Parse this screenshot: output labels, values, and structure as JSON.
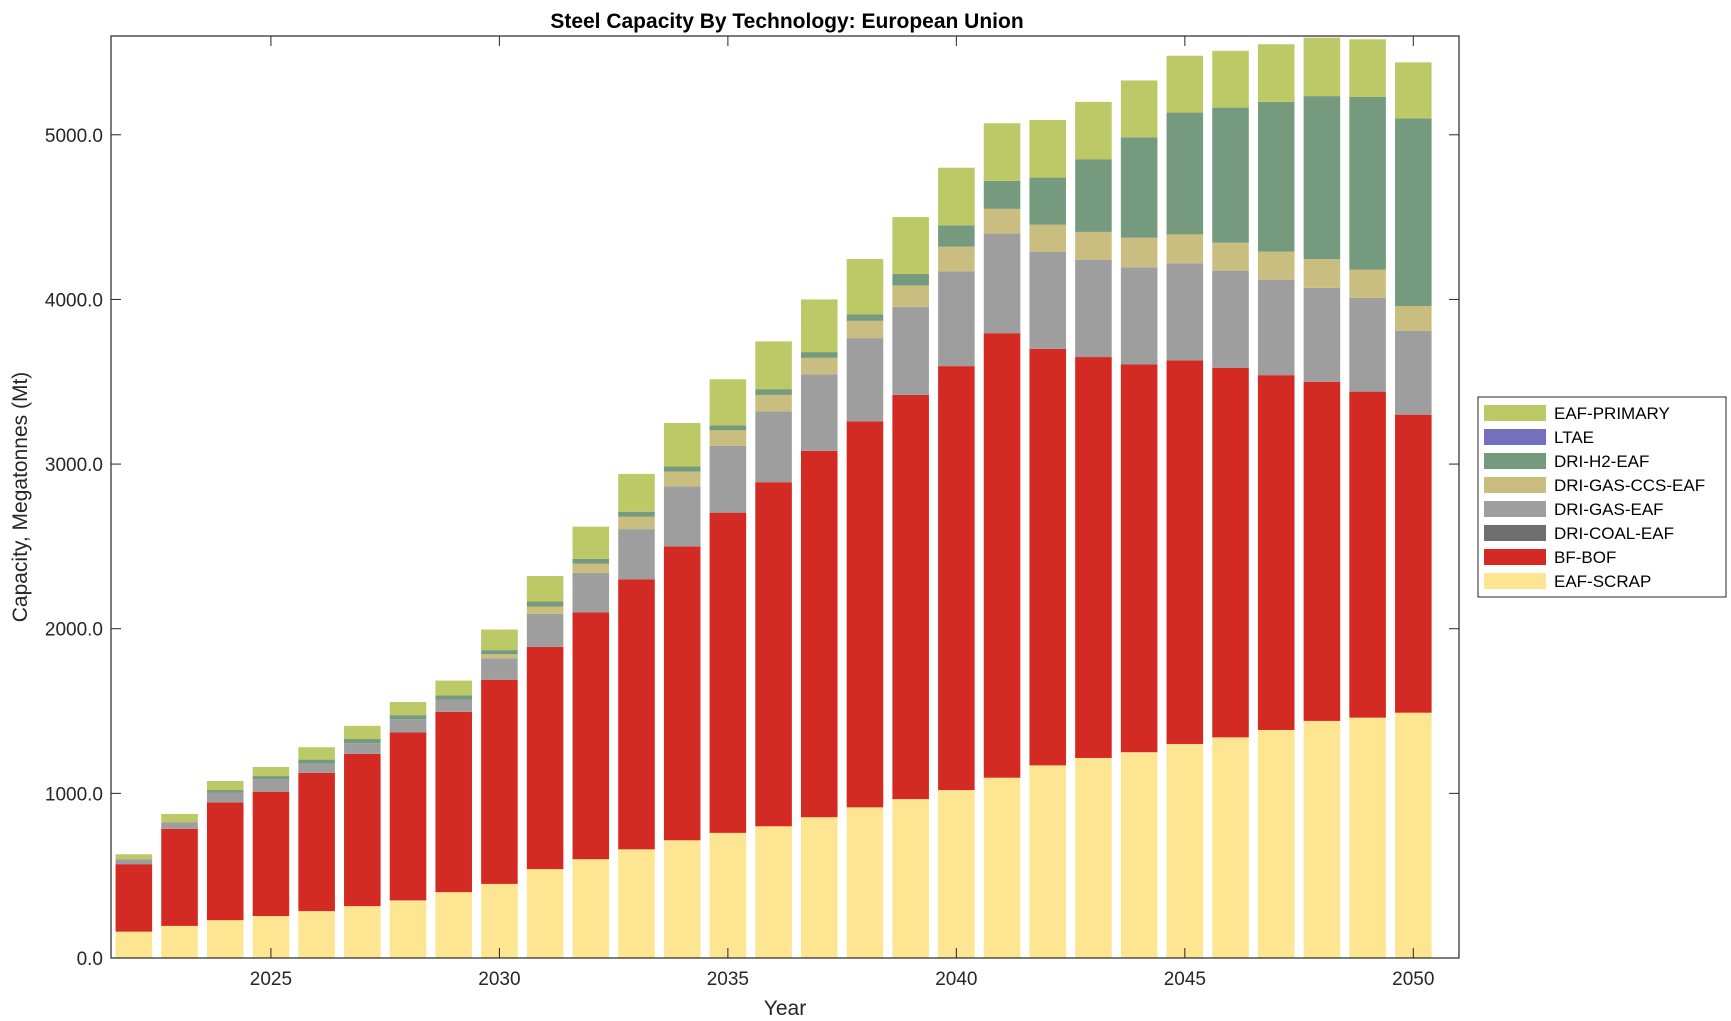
{
  "chart_data": {
    "type": "bar",
    "stacked": true,
    "title": "Steel Capacity By Technology: European Union",
    "xlabel": "Year",
    "ylabel": "Capacity, Megatonnes (Mt)",
    "x": [
      2022,
      2023,
      2024,
      2025,
      2026,
      2027,
      2028,
      2029,
      2030,
      2031,
      2032,
      2033,
      2034,
      2035,
      2036,
      2037,
      2038,
      2039,
      2040,
      2041,
      2042,
      2043,
      2044,
      2045,
      2046,
      2047,
      2048,
      2049,
      2050
    ],
    "xlim": [
      2021.5,
      2051.0
    ],
    "ylim": [
      0,
      5600
    ],
    "xticks": [
      2025,
      2030,
      2035,
      2040,
      2045,
      2050
    ],
    "xtick_labels": [
      "2025",
      "2030",
      "2035",
      "2040",
      "2045",
      "2050"
    ],
    "yticks": [
      0,
      1000,
      2000,
      3000,
      4000,
      5000
    ],
    "ytick_labels": [
      "0.0",
      "1000.0",
      "2000.0",
      "3000.0",
      "4000.0",
      "5000.0"
    ],
    "legend_position": "right",
    "legend_order": [
      "EAF-PRIMARY",
      "LTAE",
      "DRI-H2-EAF",
      "DRI-GAS-CCS-EAF",
      "DRI-GAS-EAF",
      "DRI-COAL-EAF",
      "BF-BOF",
      "EAF-SCRAP"
    ],
    "series": [
      {
        "name": "EAF-SCRAP",
        "color": "#fde592",
        "values": [
          160,
          195,
          230,
          255,
          285,
          315,
          350,
          400,
          450,
          540,
          600,
          660,
          715,
          760,
          800,
          855,
          915,
          965,
          1020,
          1095,
          1170,
          1215,
          1250,
          1300,
          1340,
          1385,
          1440,
          1460,
          1490
        ]
      },
      {
        "name": "BF-BOF",
        "color": "#d42a24",
        "values": [
          410,
          590,
          715,
          755,
          840,
          925,
          1020,
          1095,
          1240,
          1350,
          1500,
          1640,
          1785,
          1945,
          2090,
          2225,
          2345,
          2455,
          2575,
          2700,
          2530,
          2435,
          2355,
          2330,
          2245,
          2155,
          2060,
          1980,
          1810
        ]
      },
      {
        "name": "DRI-COAL-EAF",
        "color": "#6e6e6e",
        "values": [
          0,
          0,
          0,
          0,
          0,
          0,
          0,
          0,
          0,
          0,
          0,
          0,
          0,
          0,
          0,
          0,
          0,
          0,
          0,
          0,
          0,
          0,
          0,
          0,
          0,
          0,
          0,
          0,
          0
        ]
      },
      {
        "name": "DRI-GAS-EAF",
        "color": "#9e9e9e",
        "values": [
          30,
          40,
          60,
          75,
          55,
          65,
          80,
          75,
          130,
          200,
          240,
          305,
          365,
          405,
          430,
          465,
          505,
          535,
          575,
          605,
          590,
          590,
          590,
          590,
          590,
          580,
          570,
          570,
          510
        ]
      },
      {
        "name": "DRI-GAS-CCS-EAF",
        "color": "#c9bd7f",
        "values": [
          0,
          0,
          0,
          0,
          0,
          0,
          0,
          0,
          25,
          45,
          55,
          75,
          90,
          95,
          100,
          100,
          105,
          130,
          150,
          150,
          165,
          170,
          180,
          175,
          170,
          170,
          175,
          170,
          150
        ]
      },
      {
        "name": "DRI-H2-EAF",
        "color": "#759a7d",
        "values": [
          0,
          0,
          15,
          20,
          25,
          25,
          25,
          25,
          25,
          30,
          30,
          30,
          30,
          30,
          35,
          35,
          40,
          70,
          130,
          170,
          285,
          440,
          610,
          740,
          820,
          910,
          990,
          1050,
          1140
        ]
      },
      {
        "name": "LTAE",
        "color": "#7470be",
        "values": [
          0,
          0,
          0,
          0,
          0,
          0,
          0,
          0,
          0,
          0,
          0,
          0,
          0,
          0,
          0,
          0,
          0,
          0,
          0,
          0,
          0,
          0,
          0,
          0,
          0,
          0,
          0,
          0,
          0
        ]
      },
      {
        "name": "EAF-PRIMARY",
        "color": "#bdc866",
        "values": [
          30,
          50,
          55,
          55,
          75,
          80,
          80,
          90,
          125,
          155,
          195,
          230,
          265,
          280,
          290,
          320,
          335,
          345,
          350,
          350,
          350,
          350,
          345,
          345,
          345,
          350,
          355,
          350,
          340
        ]
      }
    ]
  }
}
